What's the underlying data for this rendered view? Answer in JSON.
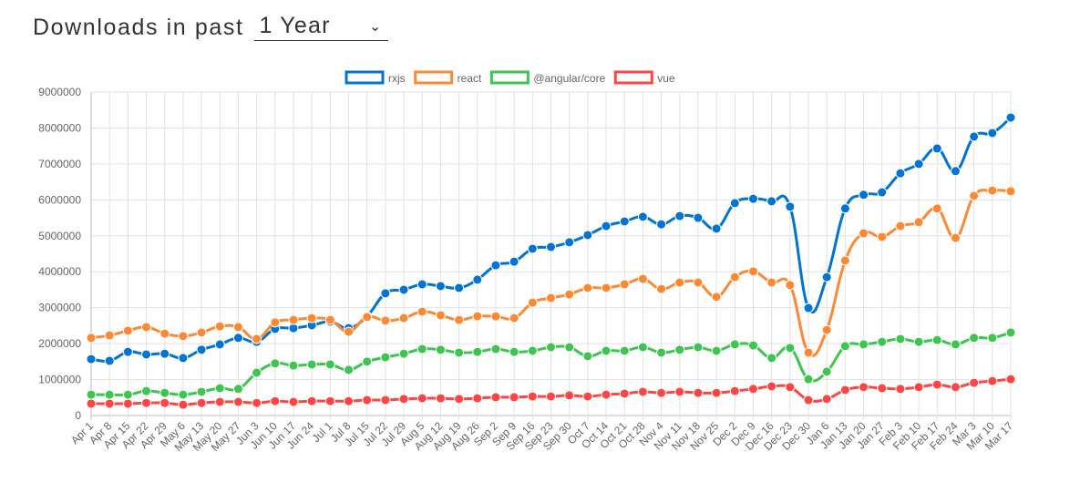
{
  "header": {
    "title": "Downloads in past",
    "period_selected": "1 Year",
    "chevron_icon": "chevron-down-icon"
  },
  "chart_data": {
    "type": "line",
    "title": "",
    "xlabel": "",
    "ylabel": "",
    "ylim": [
      0,
      9000000
    ],
    "yticks": [
      0,
      1000000,
      2000000,
      3000000,
      4000000,
      5000000,
      6000000,
      7000000,
      8000000,
      9000000
    ],
    "grid": true,
    "legend_position": "top",
    "categories": [
      "Apr 1",
      "Apr 8",
      "Apr 15",
      "Apr 22",
      "Apr 29",
      "May 6",
      "May 13",
      "May 20",
      "May 27",
      "Jun 3",
      "Jun 10",
      "Jun 17",
      "Jun 24",
      "Jul 1",
      "Jul 8",
      "Jul 15",
      "Jul 22",
      "Jul 29",
      "Aug 5",
      "Aug 12",
      "Aug 19",
      "Aug 26",
      "Sep 2",
      "Sep 9",
      "Sep 16",
      "Sep 23",
      "Sep 30",
      "Oct 7",
      "Oct 14",
      "Oct 21",
      "Oct 28",
      "Nov 4",
      "Nov 11",
      "Nov 18",
      "Nov 25",
      "Dec 2",
      "Dec 9",
      "Dec 16",
      "Dec 23",
      "Dec 30",
      "Jan 6",
      "Jan 13",
      "Jan 20",
      "Jan 27",
      "Feb 3",
      "Feb 10",
      "Feb 17",
      "Feb 24",
      "Mar 3",
      "Mar 10",
      "Mar 17"
    ],
    "series": [
      {
        "name": "rxjs",
        "color": "#0074d4",
        "values": [
          1570000,
          1520000,
          1770000,
          1700000,
          1720000,
          1600000,
          1830000,
          1980000,
          2160000,
          2050000,
          2410000,
          2430000,
          2510000,
          2610000,
          2430000,
          2760000,
          3400000,
          3500000,
          3650000,
          3600000,
          3550000,
          3780000,
          4180000,
          4280000,
          4640000,
          4690000,
          4820000,
          5020000,
          5270000,
          5400000,
          5530000,
          5320000,
          5550000,
          5500000,
          5200000,
          5910000,
          6030000,
          5960000,
          5810000,
          2990000,
          3850000,
          5760000,
          6140000,
          6210000,
          6740000,
          7000000,
          7430000,
          6800000,
          7760000,
          7860000,
          8290000
        ]
      },
      {
        "name": "react",
        "color": "#ff8833",
        "values": [
          2160000,
          2230000,
          2360000,
          2460000,
          2280000,
          2210000,
          2310000,
          2480000,
          2460000,
          2130000,
          2590000,
          2660000,
          2710000,
          2660000,
          2330000,
          2740000,
          2640000,
          2710000,
          2890000,
          2790000,
          2660000,
          2760000,
          2760000,
          2710000,
          3140000,
          3270000,
          3370000,
          3550000,
          3550000,
          3650000,
          3800000,
          3520000,
          3700000,
          3700000,
          3300000,
          3850000,
          4010000,
          3700000,
          3630000,
          1750000,
          2380000,
          4310000,
          5070000,
          4970000,
          5270000,
          5380000,
          5760000,
          4940000,
          6110000,
          6260000,
          6240000
        ]
      },
      {
        "name": "@angular/core",
        "color": "#3cc650",
        "values": [
          580000,
          580000,
          580000,
          680000,
          630000,
          580000,
          660000,
          760000,
          740000,
          1190000,
          1450000,
          1390000,
          1420000,
          1420000,
          1270000,
          1500000,
          1620000,
          1720000,
          1850000,
          1830000,
          1750000,
          1770000,
          1850000,
          1770000,
          1800000,
          1900000,
          1900000,
          1650000,
          1800000,
          1800000,
          1900000,
          1750000,
          1830000,
          1900000,
          1800000,
          1980000,
          1950000,
          1600000,
          1880000,
          1010000,
          1220000,
          1930000,
          1980000,
          2050000,
          2130000,
          2050000,
          2100000,
          1980000,
          2160000,
          2160000,
          2310000
        ]
      },
      {
        "name": "vue",
        "color": "#ff4444",
        "values": [
          330000,
          330000,
          330000,
          350000,
          350000,
          300000,
          350000,
          380000,
          380000,
          350000,
          400000,
          380000,
          400000,
          400000,
          400000,
          430000,
          430000,
          460000,
          480000,
          480000,
          460000,
          480000,
          510000,
          510000,
          530000,
          530000,
          560000,
          530000,
          580000,
          610000,
          660000,
          630000,
          660000,
          630000,
          630000,
          680000,
          740000,
          810000,
          790000,
          430000,
          460000,
          710000,
          790000,
          760000,
          740000,
          790000,
          860000,
          790000,
          910000,
          960000,
          1010000
        ]
      }
    ]
  }
}
